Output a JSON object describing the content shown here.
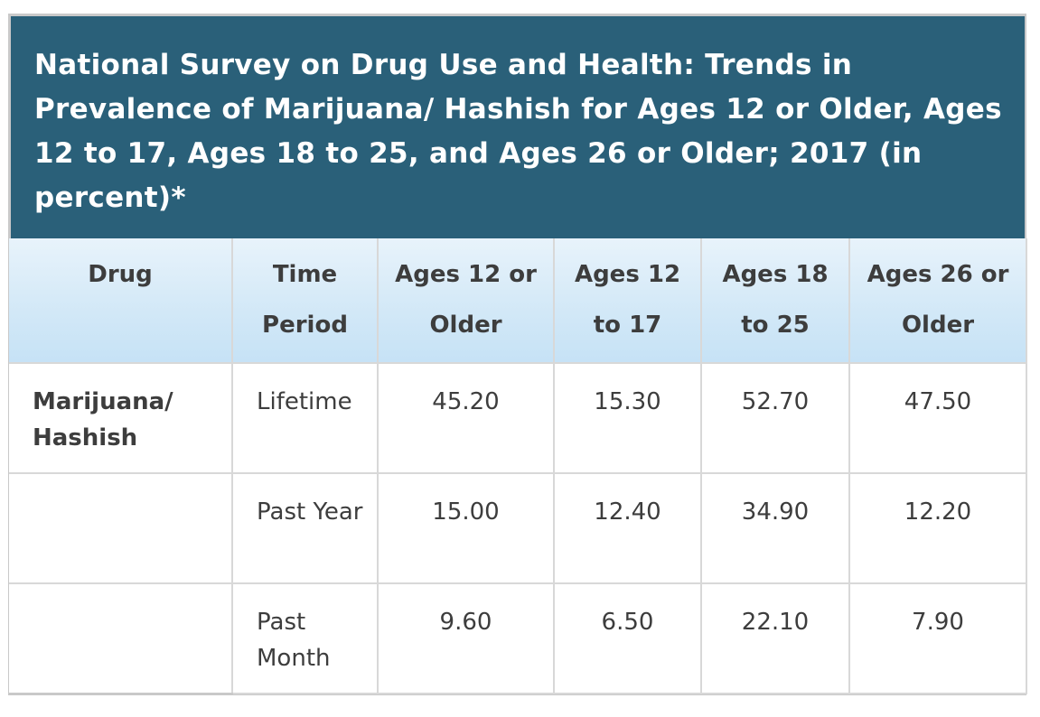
{
  "title": "National Survey on Drug Use and Health: Trends in Prevalence of Marijuana/ Hashish for Ages 12 or Older, Ages 12 to 17, Ages 18 to 25, and Ages 26 or Older; 2017 (in percent)*",
  "table": {
    "headers": [
      "Drug",
      "Time Period",
      "Ages 12 or Older",
      "Ages 12 to 17",
      "Ages 18 to 25",
      "Ages 26 or Older"
    ],
    "rows": [
      {
        "drug": "Marijuana/ Hashish",
        "period": "Lifetime",
        "values": [
          "45.20",
          "15.30",
          "52.70",
          "47.50"
        ]
      },
      {
        "drug": "",
        "period": "Past Year",
        "values": [
          "15.00",
          "12.40",
          "34.90",
          "12.20"
        ]
      },
      {
        "drug": "",
        "period": "Past Month",
        "values": [
          "9.60",
          "6.50",
          "22.10",
          "7.90"
        ]
      }
    ]
  },
  "colors": {
    "title_background": "#2a6079",
    "header_background": "#d2e8f7",
    "text": "#3d3d3d"
  }
}
